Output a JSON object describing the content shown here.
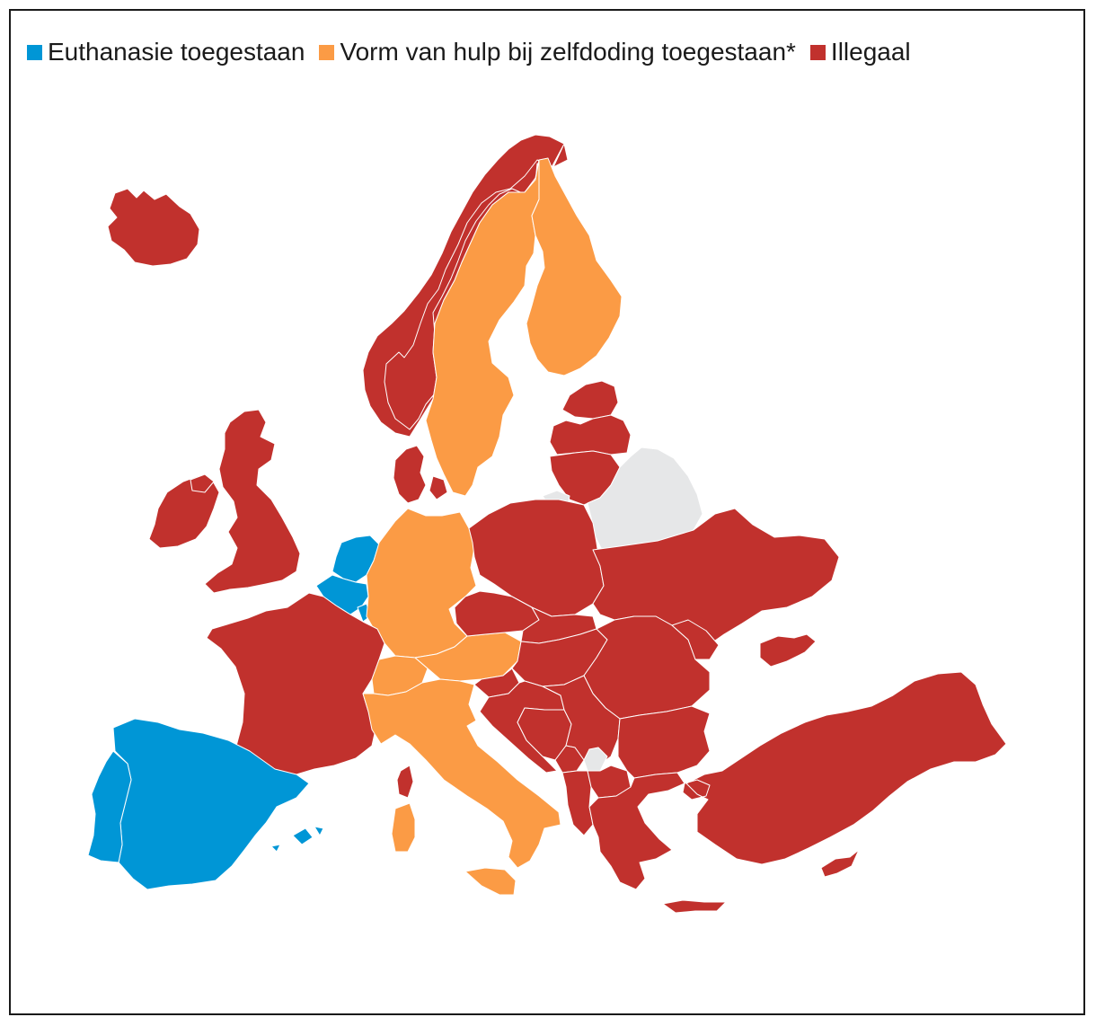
{
  "colors": {
    "euthanasia": "#0096d6",
    "assisted": "#fb9b45",
    "illegal": "#c1312d",
    "nodata": "#e6e7e8"
  },
  "legend": {
    "items": [
      {
        "key": "euthanasia",
        "label": "Euthanasie toegestaan"
      },
      {
        "key": "assisted",
        "label": "Vorm van hulp bij zelfdoding toegestaan*"
      },
      {
        "key": "illegal",
        "label": "Illegaal"
      }
    ]
  },
  "regions": [
    {
      "name": "iceland",
      "category": "illegal"
    },
    {
      "name": "norway",
      "category": "illegal"
    },
    {
      "name": "sweden",
      "category": "assisted"
    },
    {
      "name": "finland",
      "category": "assisted"
    },
    {
      "name": "denmark",
      "category": "illegal"
    },
    {
      "name": "estonia",
      "category": "illegal"
    },
    {
      "name": "latvia",
      "category": "illegal"
    },
    {
      "name": "lithuania",
      "category": "illegal"
    },
    {
      "name": "kaliningrad",
      "category": "nodata"
    },
    {
      "name": "belarus",
      "category": "nodata"
    },
    {
      "name": "ireland",
      "category": "illegal"
    },
    {
      "name": "united-kingdom",
      "category": "illegal"
    },
    {
      "name": "netherlands",
      "category": "euthanasia"
    },
    {
      "name": "belgium",
      "category": "euthanasia"
    },
    {
      "name": "luxembourg",
      "category": "euthanasia"
    },
    {
      "name": "germany",
      "category": "assisted"
    },
    {
      "name": "poland",
      "category": "illegal"
    },
    {
      "name": "ukraine",
      "category": "illegal"
    },
    {
      "name": "france",
      "category": "illegal"
    },
    {
      "name": "switzerland",
      "category": "assisted"
    },
    {
      "name": "austria",
      "category": "assisted"
    },
    {
      "name": "italy",
      "category": "assisted"
    },
    {
      "name": "sardinia",
      "category": "assisted"
    },
    {
      "name": "sicily",
      "category": "assisted"
    },
    {
      "name": "corsica",
      "category": "illegal"
    },
    {
      "name": "spain",
      "category": "euthanasia"
    },
    {
      "name": "portugal",
      "category": "euthanasia"
    },
    {
      "name": "balearic-islands",
      "category": "euthanasia"
    },
    {
      "name": "czechia",
      "category": "illegal"
    },
    {
      "name": "slovakia",
      "category": "illegal"
    },
    {
      "name": "hungary",
      "category": "illegal"
    },
    {
      "name": "romania",
      "category": "illegal"
    },
    {
      "name": "moldova",
      "category": "illegal"
    },
    {
      "name": "slovenia",
      "category": "illegal"
    },
    {
      "name": "croatia",
      "category": "illegal"
    },
    {
      "name": "bosnia",
      "category": "illegal"
    },
    {
      "name": "serbia",
      "category": "illegal"
    },
    {
      "name": "kosovo",
      "category": "nodata"
    },
    {
      "name": "montenegro",
      "category": "illegal"
    },
    {
      "name": "albania",
      "category": "illegal"
    },
    {
      "name": "north-macedonia",
      "category": "illegal"
    },
    {
      "name": "bulgaria",
      "category": "illegal"
    },
    {
      "name": "greece",
      "category": "illegal"
    },
    {
      "name": "crete",
      "category": "illegal"
    },
    {
      "name": "turkey",
      "category": "illegal"
    },
    {
      "name": "cyprus",
      "category": "illegal"
    },
    {
      "name": "crimea",
      "category": "illegal"
    }
  ]
}
